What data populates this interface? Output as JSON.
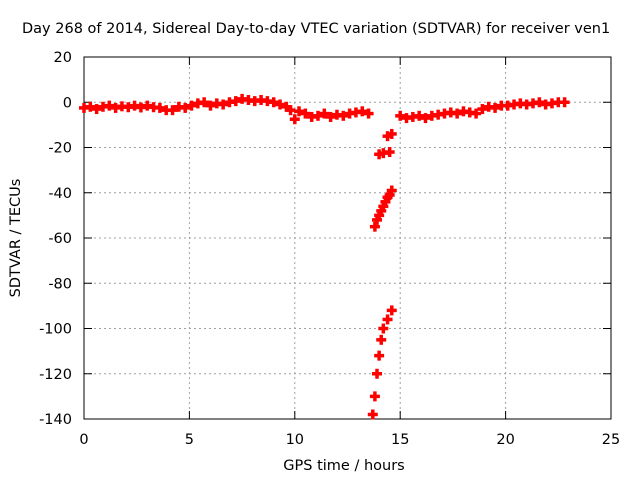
{
  "chart_data": {
    "type": "scatter",
    "title": "Day 268 of 2014, Sidereal Day-to-day VTEC variation (SDTVAR) for receiver ven1",
    "xlabel": "GPS time / hours",
    "ylabel": "SDTVAR / TECUs",
    "xlim": [
      0,
      25
    ],
    "ylim": [
      -140,
      20
    ],
    "xticks": [
      0,
      5,
      10,
      15,
      20,
      25
    ],
    "yticks": [
      20,
      0,
      -20,
      -40,
      -60,
      -80,
      -100,
      -120,
      -140
    ],
    "grid": true,
    "legend": "none",
    "marker": "+",
    "color": "#ff0000",
    "series": [
      {
        "points": [
          [
            0.0,
            -2.5
          ],
          [
            0.3,
            -2.0
          ],
          [
            0.6,
            -3.0
          ],
          [
            0.9,
            -2.0
          ],
          [
            1.2,
            -1.5
          ],
          [
            1.5,
            -2.5
          ],
          [
            1.8,
            -1.8
          ],
          [
            2.1,
            -2.2
          ],
          [
            2.4,
            -1.5
          ],
          [
            2.7,
            -2.3
          ],
          [
            3.0,
            -1.5
          ],
          [
            3.3,
            -2.2
          ],
          [
            3.6,
            -2.5
          ],
          [
            3.9,
            -3.5
          ],
          [
            4.2,
            -3.5
          ],
          [
            4.5,
            -2.0
          ],
          [
            4.8,
            -2.5
          ],
          [
            5.1,
            -1.5
          ],
          [
            5.4,
            -0.5
          ],
          [
            5.7,
            0.0
          ],
          [
            6.0,
            -1.5
          ],
          [
            6.3,
            -0.5
          ],
          [
            6.6,
            -1.0
          ],
          [
            6.9,
            0.0
          ],
          [
            7.2,
            0.5
          ],
          [
            7.5,
            1.5
          ],
          [
            7.8,
            1.0
          ],
          [
            8.1,
            0.5
          ],
          [
            8.4,
            1.0
          ],
          [
            8.7,
            0.5
          ],
          [
            9.0,
            0.0
          ],
          [
            9.3,
            -1.0
          ],
          [
            9.6,
            -2.0
          ],
          [
            9.8,
            -3.5
          ],
          [
            10.0,
            -7.5
          ],
          [
            10.2,
            -4.0
          ],
          [
            10.5,
            -5.0
          ],
          [
            10.8,
            -6.5
          ],
          [
            11.1,
            -6.0
          ],
          [
            11.4,
            -5.0
          ],
          [
            11.7,
            -6.5
          ],
          [
            12.0,
            -5.5
          ],
          [
            12.3,
            -6.0
          ],
          [
            12.6,
            -5.0
          ],
          [
            12.9,
            -4.5
          ],
          [
            13.2,
            -4.0
          ],
          [
            13.5,
            -5.0
          ],
          [
            13.7,
            -138
          ],
          [
            13.8,
            -130
          ],
          [
            13.9,
            -120
          ],
          [
            14.0,
            -112
          ],
          [
            14.1,
            -105
          ],
          [
            14.2,
            -100
          ],
          [
            14.4,
            -96
          ],
          [
            14.6,
            -92
          ],
          [
            13.8,
            -55
          ],
          [
            13.9,
            -52
          ],
          [
            14.0,
            -50
          ],
          [
            14.1,
            -48
          ],
          [
            14.2,
            -46
          ],
          [
            14.3,
            -44
          ],
          [
            14.4,
            -42
          ],
          [
            14.5,
            -41
          ],
          [
            14.6,
            -39
          ],
          [
            14.0,
            -23
          ],
          [
            14.2,
            -22.5
          ],
          [
            14.5,
            -22
          ],
          [
            14.4,
            -15
          ],
          [
            14.6,
            -14
          ],
          [
            15.0,
            -6.0
          ],
          [
            15.3,
            -7.0
          ],
          [
            15.6,
            -6.5
          ],
          [
            15.9,
            -6.0
          ],
          [
            16.2,
            -7.0
          ],
          [
            16.5,
            -6.0
          ],
          [
            16.8,
            -5.5
          ],
          [
            17.1,
            -5.0
          ],
          [
            17.4,
            -4.5
          ],
          [
            17.7,
            -5.0
          ],
          [
            18.0,
            -4.0
          ],
          [
            18.3,
            -4.5
          ],
          [
            18.6,
            -5.0
          ],
          [
            18.9,
            -3.0
          ],
          [
            19.2,
            -2.0
          ],
          [
            19.5,
            -2.5
          ],
          [
            19.8,
            -1.5
          ],
          [
            20.1,
            -1.5
          ],
          [
            20.4,
            -1.0
          ],
          [
            20.7,
            -0.5
          ],
          [
            21.0,
            -1.0
          ],
          [
            21.3,
            -0.5
          ],
          [
            21.6,
            0.0
          ],
          [
            21.9,
            -1.0
          ],
          [
            22.2,
            -0.5
          ],
          [
            22.5,
            0.0
          ],
          [
            22.8,
            0.0
          ]
        ]
      }
    ]
  }
}
